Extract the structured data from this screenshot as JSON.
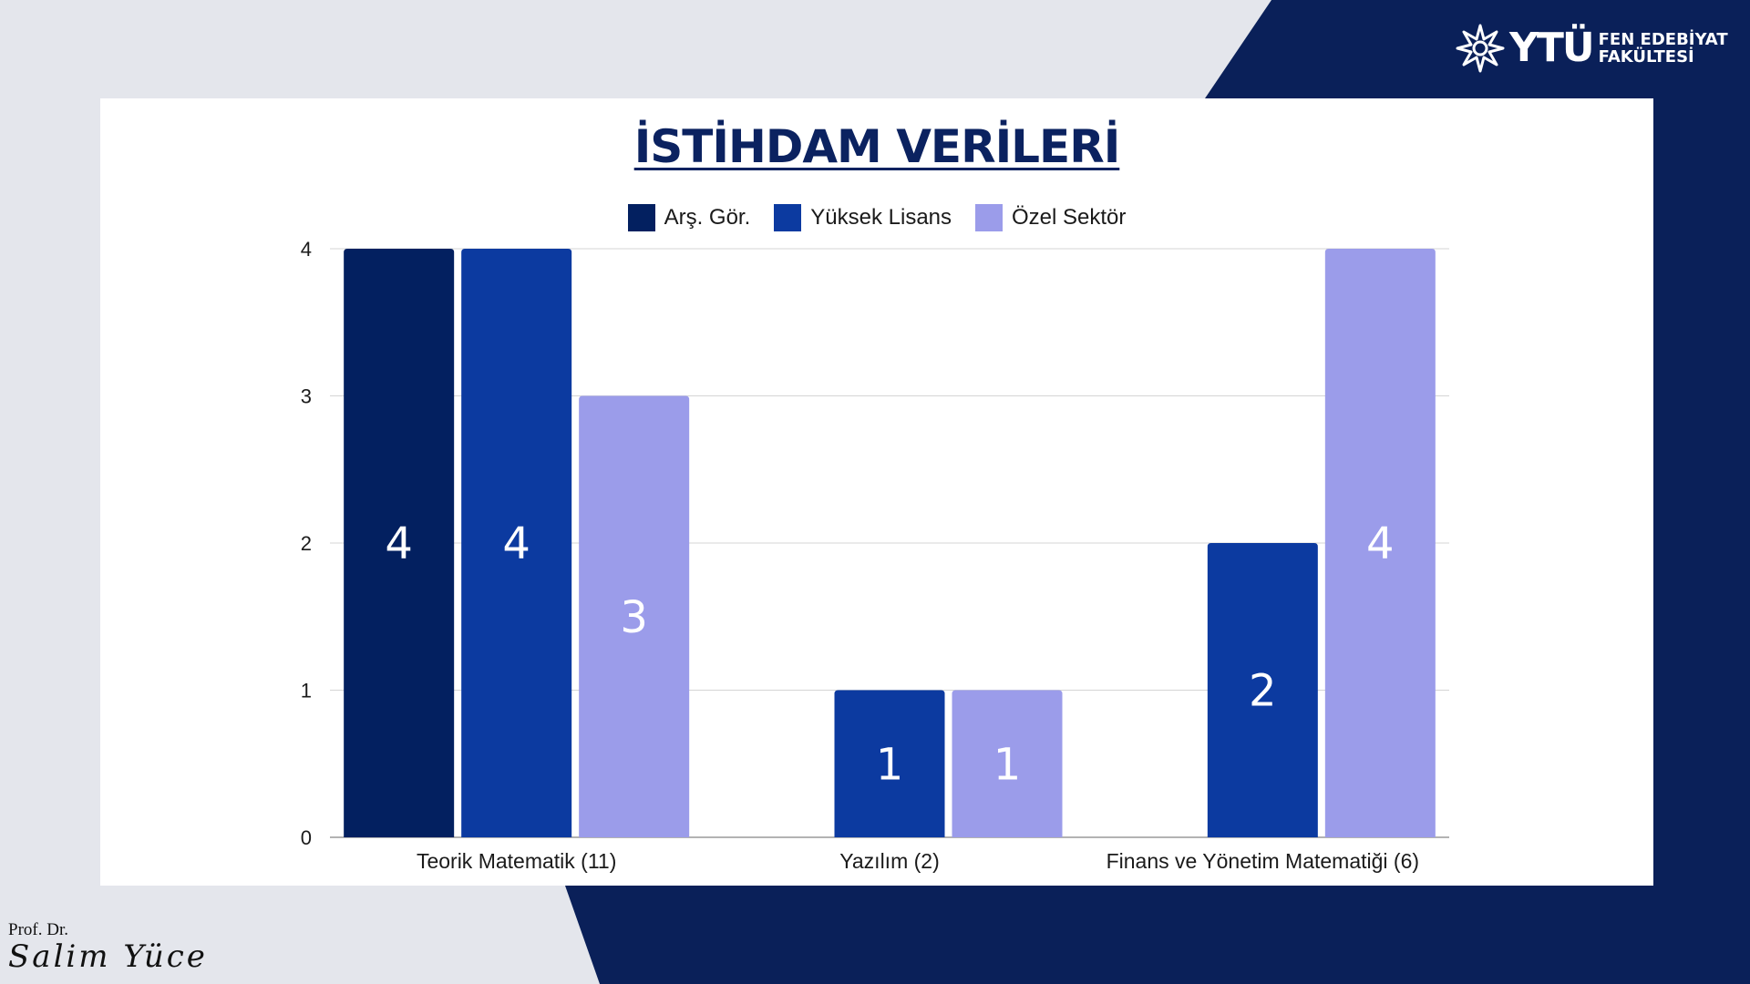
{
  "brand": {
    "logo_text": "YTÜ",
    "faculty_line1": "FEN EDEBİYAT",
    "faculty_line2": "FAKÜLTESİ",
    "logo_icon": "star-burst-icon"
  },
  "colors": {
    "navy_background": "#0a2059",
    "page_background": "#e4e6ec",
    "series_ars_gor": "#032060",
    "series_yuksek_lisans": "#0c3aa0",
    "series_ozel_sektor": "#9b9cea",
    "title": "#0b2260"
  },
  "signature": {
    "prefix": "Prof. Dr.",
    "name": "Salim Yüce"
  },
  "chart_data": {
    "type": "bar",
    "title": "İSTİHDAM VERİLERİ",
    "xlabel": "",
    "ylabel": "",
    "categories": [
      "Teorik Matematik (11)",
      "Yazılım (2)",
      "Finans ve Yönetim Matematiği (6)"
    ],
    "series": [
      {
        "name": "Arş. Gör.",
        "color": "#032060",
        "values": [
          4,
          0,
          0
        ]
      },
      {
        "name": "Yüksek Lisans",
        "color": "#0c3aa0",
        "values": [
          4,
          1,
          2
        ]
      },
      {
        "name": "Özel Sektör",
        "color": "#9b9cea",
        "values": [
          3,
          1,
          4
        ]
      }
    ],
    "ylim": [
      0,
      4
    ],
    "yticks": [
      0,
      1,
      2,
      3,
      4
    ],
    "grid": true,
    "legend_position": "top",
    "data_labels": true
  }
}
